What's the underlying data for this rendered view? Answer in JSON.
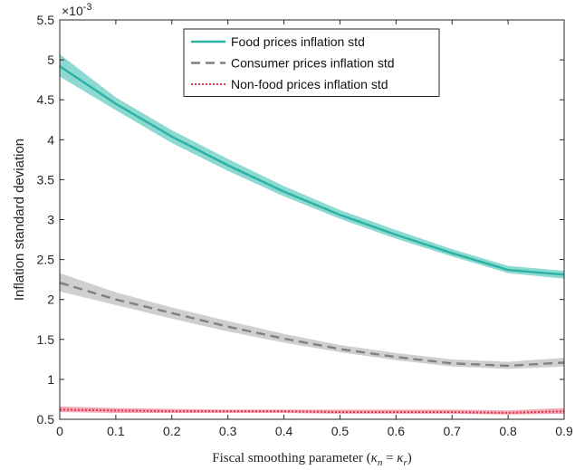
{
  "chart_data": {
    "type": "line",
    "xlabel": "Fiscal smoothing parameter (κn = κr)",
    "ylabel": "Inflation standard deviation",
    "y_multiplier_label": "×10-3",
    "xlim": [
      0,
      0.9
    ],
    "ylim": [
      0.5,
      5.5
    ],
    "x_ticks": [
      0,
      0.1,
      0.2,
      0.3,
      0.4,
      0.5,
      0.6,
      0.7,
      0.8,
      0.9
    ],
    "x_tick_labels": [
      "0",
      "0.1",
      "0.2",
      "0.3",
      "0.4",
      "0.5",
      "0.6",
      "0.7",
      "0.8",
      "0.9"
    ],
    "y_ticks": [
      0.5,
      1,
      1.5,
      2,
      2.5,
      3,
      3.5,
      4,
      4.5,
      5,
      5.5
    ],
    "y_tick_labels": [
      "0.5",
      "1",
      "1.5",
      "2",
      "2.5",
      "3",
      "3.5",
      "4",
      "4.5",
      "5",
      "5.5"
    ],
    "grid": false,
    "legend_position": "top-center",
    "x": [
      0,
      0.1,
      0.2,
      0.3,
      0.4,
      0.5,
      0.6,
      0.7,
      0.8,
      0.9
    ],
    "series": [
      {
        "name": "Food prices inflation std",
        "style": "solid",
        "color": "#2ab3a3",
        "band_color": "#8ed9d1",
        "values": [
          4.92,
          4.45,
          4.04,
          3.68,
          3.35,
          3.06,
          2.81,
          2.58,
          2.37,
          2.31
        ],
        "lower": [
          4.79,
          4.37,
          3.96,
          3.61,
          3.29,
          3.01,
          2.76,
          2.54,
          2.33,
          2.26
        ],
        "upper": [
          5.07,
          4.53,
          4.12,
          3.76,
          3.42,
          3.12,
          2.87,
          2.63,
          2.42,
          2.36
        ]
      },
      {
        "name": "Consumer prices inflation std",
        "style": "dashed",
        "color": "#808080",
        "band_color": "#cfcfcf",
        "values": [
          2.21,
          2.0,
          1.83,
          1.66,
          1.51,
          1.38,
          1.28,
          1.2,
          1.17,
          1.21
        ],
        "lower": [
          2.1,
          1.93,
          1.76,
          1.6,
          1.46,
          1.34,
          1.24,
          1.16,
          1.13,
          1.16
        ],
        "upper": [
          2.33,
          2.09,
          1.9,
          1.73,
          1.57,
          1.43,
          1.33,
          1.25,
          1.22,
          1.27
        ]
      },
      {
        "name": "Non-food prices inflation std",
        "style": "dotted",
        "color": "#e8344e",
        "band_color": "#f2a7b4",
        "values": [
          0.62,
          0.61,
          0.6,
          0.6,
          0.6,
          0.59,
          0.59,
          0.59,
          0.58,
          0.6
        ],
        "lower": [
          0.59,
          0.58,
          0.58,
          0.58,
          0.58,
          0.57,
          0.57,
          0.57,
          0.56,
          0.57
        ],
        "upper": [
          0.66,
          0.64,
          0.63,
          0.62,
          0.62,
          0.62,
          0.62,
          0.62,
          0.61,
          0.64
        ]
      }
    ]
  }
}
